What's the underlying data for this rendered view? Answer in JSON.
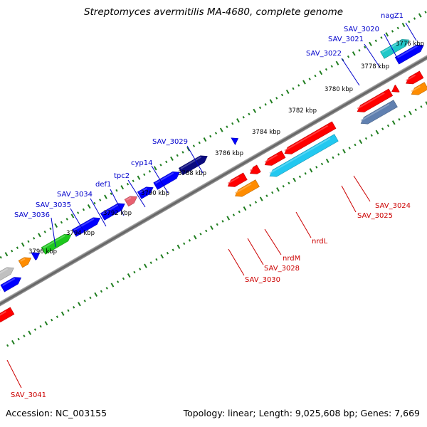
{
  "title": "Streptomyces avermitilis MA-4680, complete genome",
  "footer": {
    "accession": "Accession: NC_003155",
    "stats": "Topology: linear; Length: 9,025,608 bp; Genes: 7,669"
  },
  "colors": {
    "axis": "#808080",
    "tick": "#1f7d1f",
    "label_top": "#0000cc",
    "label_bottom": "#cc0000",
    "leader_top": "#0000cc",
    "leader_bottom": "#cc0000"
  },
  "scale_labels": [
    "3776 kbp",
    "3778 kbp",
    "3780 kbp",
    "3782 kbp",
    "3784 kbp",
    "3786 kbp",
    "3788 kbp",
    "3790 kbp",
    "3792 kbp",
    "3794 kbp",
    "3796 kbp"
  ],
  "top_labels": [
    "nagZ1",
    "SAV_3020",
    "SAV_3021",
    "SAV_3022",
    "SAV_3029",
    "cyp14",
    "tpc2",
    "def1",
    "SAV_3034",
    "SAV_3035",
    "SAV_3036"
  ],
  "bottom_labels": [
    "SAV_3024",
    "SAV_3025",
    "nrdL",
    "nrdM",
    "SAV_3028",
    "SAV_3030",
    "SAV_3041"
  ],
  "genes": [
    {
      "strand": "+",
      "row": 2,
      "s": -20,
      "e": 10,
      "color": "#707070"
    },
    {
      "strand": "+",
      "row": 2,
      "s": 14,
      "e": 42,
      "color": "#c0c0c0"
    },
    {
      "strand": "+",
      "row": 2,
      "s": 53,
      "e": 70,
      "color": "#ff8c00"
    },
    {
      "strand": "+",
      "row": 2,
      "s": 74,
      "e": 84,
      "color": "#0000ff"
    },
    {
      "strand": "+",
      "row": 2,
      "s": 90,
      "e": 135,
      "color": "#1ec81e"
    },
    {
      "strand": "+",
      "row": 2,
      "s": 140,
      "e": 182,
      "color": "#0000ff"
    },
    {
      "strand": "+",
      "row": 2,
      "s": 186,
      "e": 222,
      "color": "#0000ff"
    },
    {
      "strand": "+",
      "row": 2,
      "s": 225,
      "e": 242,
      "color": "#e86070"
    },
    {
      "strand": "+",
      "row": 2,
      "s": 246,
      "e": 268,
      "color": "#0000ff"
    },
    {
      "strand": "+",
      "row": 2,
      "s": 272,
      "e": 311,
      "color": "#0000ff"
    },
    {
      "strand": "+",
      "row": 2,
      "s": 313,
      "e": 356,
      "color": "#0a0a80"
    },
    {
      "strand": "+",
      "row": 2,
      "s": 398,
      "e": 406,
      "color": "#0000ff"
    },
    {
      "strand": "+",
      "row": 2,
      "s": 640,
      "e": 683,
      "color": "#20c8c8"
    },
    {
      "strand": "+",
      "row": 2,
      "s": 787,
      "e": 818,
      "color": "#20c8c8"
    },
    {
      "strand": "+",
      "row": 1,
      "s": -20,
      "e": 10,
      "color": "#0000ff"
    },
    {
      "strand": "+",
      "row": 1,
      "s": 14,
      "e": 44,
      "color": "#0000ff"
    },
    {
      "strand": "+",
      "row": 1,
      "s": 654,
      "e": 697,
      "color": "#0000ff"
    },
    {
      "strand": "+",
      "row": 1,
      "s": 708,
      "e": 732,
      "color": "#0000ff"
    },
    {
      "strand": "+",
      "row": 1,
      "s": 736,
      "e": 760,
      "color": "#0000ff"
    },
    {
      "strand": "+",
      "row": 1,
      "s": 764,
      "e": 790,
      "color": "#0000ff"
    },
    {
      "strand": "-",
      "row": 1,
      "s": -20,
      "e": 10,
      "color": "#ff0000"
    },
    {
      "strand": "-",
      "row": 1,
      "s": 360,
      "e": 388,
      "color": "#ff0000"
    },
    {
      "strand": "-",
      "row": 1,
      "s": 396,
      "e": 410,
      "color": "#ff0000"
    },
    {
      "strand": "-",
      "row": 1,
      "s": 420,
      "e": 450,
      "color": "#ff0000"
    },
    {
      "strand": "-",
      "row": 1,
      "s": 452,
      "e": 532,
      "color": "#ff0000"
    },
    {
      "strand": "-",
      "row": 1,
      "s": 570,
      "e": 624,
      "color": "#ff0000"
    },
    {
      "strand": "-",
      "row": 1,
      "s": 626,
      "e": 635,
      "color": "#ff0000"
    },
    {
      "strand": "-",
      "row": 1,
      "s": 649,
      "e": 674,
      "color": "#ff0000"
    },
    {
      "strand": "-",
      "row": 2,
      "s": 362,
      "e": 398,
      "color": "#ff8c00"
    },
    {
      "strand": "-",
      "row": 2,
      "s": 418,
      "e": 526,
      "color": "#22c8f0"
    },
    {
      "strand": "-",
      "row": 2,
      "s": 566,
      "e": 622,
      "color": "#6080b0"
    },
    {
      "strand": "-",
      "row": 2,
      "s": 648,
      "e": 672,
      "color": "#ff8c00"
    }
  ]
}
